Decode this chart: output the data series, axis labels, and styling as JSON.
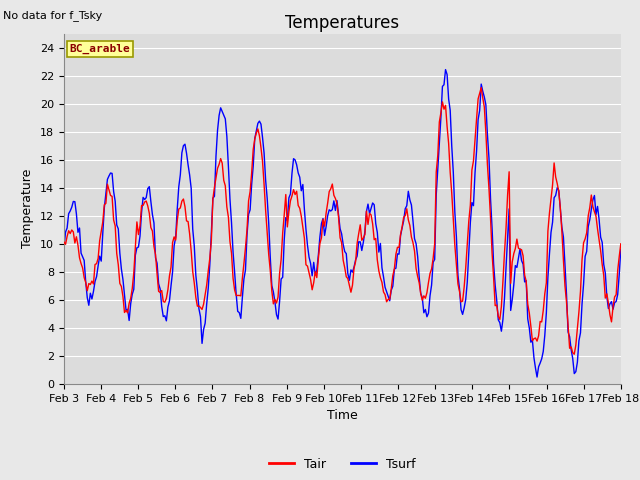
{
  "title": "Temperatures",
  "xlabel": "Time",
  "ylabel": "Temperature",
  "annotation": "No data for f_Tsky",
  "legend_label": "BC_arable",
  "line1_label": "Tair",
  "line2_label": "Tsurf",
  "line1_color": "#ff0000",
  "line2_color": "#0000ff",
  "ylim": [
    0,
    25
  ],
  "yticks": [
    0,
    2,
    4,
    6,
    8,
    10,
    12,
    14,
    16,
    18,
    20,
    22,
    24
  ],
  "xtick_labels": [
    "Feb 3",
    "Feb 4",
    "Feb 5",
    "Feb 6",
    "Feb 7",
    "Feb 8",
    "Feb 9",
    "Feb 10",
    "Feb 11",
    "Feb 12",
    "Feb 13",
    "Feb 14",
    "Feb 15",
    "Feb 16",
    "Feb 17",
    "Feb 18"
  ],
  "background_color": "#e8e8e8",
  "plot_bg_color": "#dcdcdc",
  "grid_color": "#ffffff",
  "title_fontsize": 12,
  "axis_fontsize": 9,
  "tick_fontsize": 8,
  "legend_box_facecolor": "#ffff99",
  "legend_box_edgecolor": "#999900",
  "figsize": [
    6.4,
    4.8
  ],
  "dpi": 100
}
